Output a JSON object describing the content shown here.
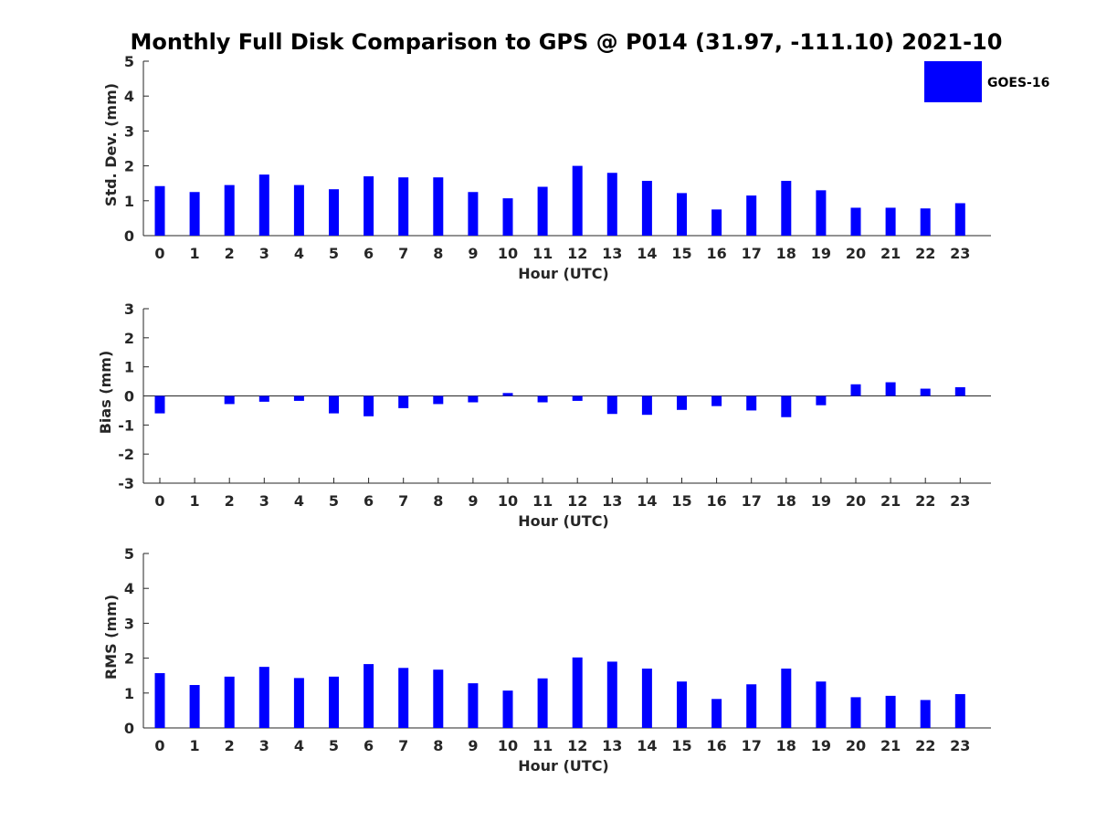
{
  "title": "Monthly Full Disk Comparison to GPS @ P014 (31.97, -111.10) 2021-10",
  "legend": {
    "label": "GOES-16",
    "color": "#0000ff"
  },
  "chart_data": [
    {
      "type": "bar",
      "categories": [
        "0",
        "1",
        "2",
        "3",
        "4",
        "5",
        "6",
        "7",
        "8",
        "9",
        "10",
        "11",
        "12",
        "13",
        "14",
        "15",
        "16",
        "17",
        "18",
        "19",
        "20",
        "21",
        "22",
        "23"
      ],
      "series": [
        {
          "name": "GOES-16",
          "values": [
            1.42,
            1.25,
            1.45,
            1.75,
            1.45,
            1.33,
            1.7,
            1.67,
            1.67,
            1.25,
            1.07,
            1.4,
            2.0,
            1.8,
            1.57,
            1.22,
            0.75,
            1.15,
            1.57,
            1.3,
            0.8,
            0.8,
            0.78,
            0.93
          ]
        }
      ],
      "xlabel": "Hour (UTC)",
      "ylabel": "Std. Dev. (mm)",
      "ylim": [
        0,
        5
      ],
      "yticks": [
        "0",
        "1",
        "2",
        "3",
        "4",
        "5"
      ],
      "grid": false
    },
    {
      "type": "bar",
      "categories": [
        "0",
        "1",
        "2",
        "3",
        "4",
        "5",
        "6",
        "7",
        "8",
        "9",
        "10",
        "11",
        "12",
        "13",
        "14",
        "15",
        "16",
        "17",
        "18",
        "19",
        "20",
        "21",
        "22",
        "23"
      ],
      "series": [
        {
          "name": "GOES-16",
          "values": [
            -0.6,
            0.0,
            -0.28,
            -0.2,
            -0.17,
            -0.6,
            -0.7,
            -0.42,
            -0.28,
            -0.22,
            0.1,
            -0.22,
            -0.17,
            -0.62,
            -0.65,
            -0.48,
            -0.35,
            -0.5,
            -0.73,
            -0.32,
            0.4,
            0.47,
            0.25,
            0.3
          ]
        }
      ],
      "xlabel": "Hour (UTC)",
      "ylabel": "Bias (mm)",
      "ylim": [
        -3,
        3
      ],
      "yticks": [
        "-3",
        "-2",
        "-1",
        "0",
        "1",
        "2",
        "3"
      ],
      "grid": false
    },
    {
      "type": "bar",
      "categories": [
        "0",
        "1",
        "2",
        "3",
        "4",
        "5",
        "6",
        "7",
        "8",
        "9",
        "10",
        "11",
        "12",
        "13",
        "14",
        "15",
        "16",
        "17",
        "18",
        "19",
        "20",
        "21",
        "22",
        "23"
      ],
      "series": [
        {
          "name": "GOES-16",
          "values": [
            1.57,
            1.23,
            1.47,
            1.75,
            1.43,
            1.47,
            1.83,
            1.72,
            1.67,
            1.28,
            1.07,
            1.42,
            2.02,
            1.9,
            1.7,
            1.33,
            0.83,
            1.25,
            1.7,
            1.33,
            0.88,
            0.92,
            0.8,
            0.97
          ]
        }
      ],
      "xlabel": "Hour (UTC)",
      "ylabel": "RMS (mm)",
      "ylim": [
        0,
        5
      ],
      "yticks": [
        "0",
        "1",
        "2",
        "3",
        "4",
        "5"
      ],
      "grid": false
    }
  ]
}
